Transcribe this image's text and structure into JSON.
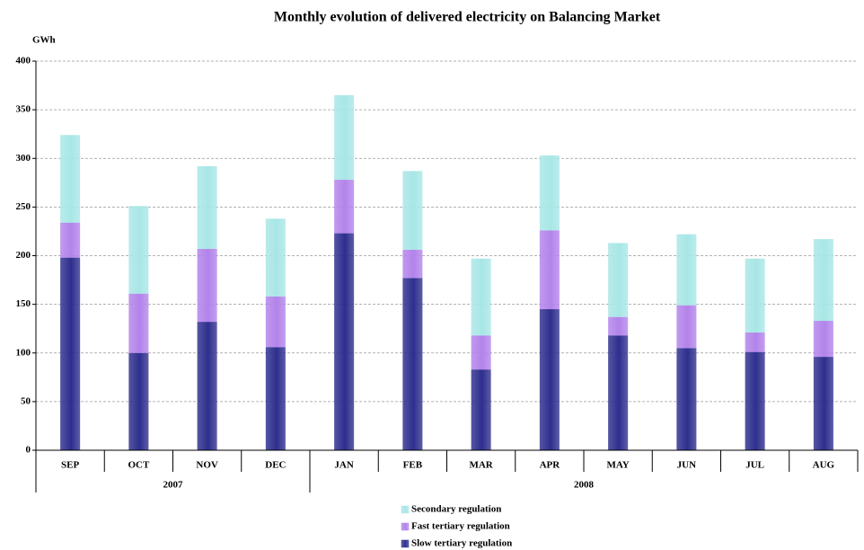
{
  "chart_data": {
    "type": "stacked-bar",
    "title": "Monthly evolution of delivered electricity on Balancing Market",
    "y_label": "GWh",
    "categories": [
      "SEP",
      "OCT",
      "NOV",
      "DEC",
      "JAN",
      "FEB",
      "MAR",
      "APR",
      "MAY",
      "JUN",
      "JUL",
      "AUG"
    ],
    "groups": [
      {
        "label": "2007",
        "size": 4
      },
      {
        "label": "2008",
        "size": 8
      }
    ],
    "series": [
      {
        "name": "Slow tertiary regulation",
        "color": "#2e2e8e",
        "values": [
          198,
          100,
          132,
          106,
          223,
          177,
          83,
          145,
          118,
          105,
          101,
          96
        ]
      },
      {
        "name": "Fast tertiary regulation",
        "color": "#b283ea",
        "values": [
          36,
          61,
          75,
          52,
          55,
          29,
          35,
          81,
          19,
          44,
          20,
          37
        ]
      },
      {
        "name": "Secondary regulation",
        "color": "#a9e6e6",
        "values": [
          90,
          90,
          85,
          80,
          87,
          81,
          79,
          77,
          76,
          73,
          76,
          84
        ]
      }
    ],
    "ylim": [
      0,
      400
    ],
    "yticks": [
      0,
      50,
      100,
      150,
      200,
      250,
      300,
      350,
      400
    ],
    "grid": true
  }
}
